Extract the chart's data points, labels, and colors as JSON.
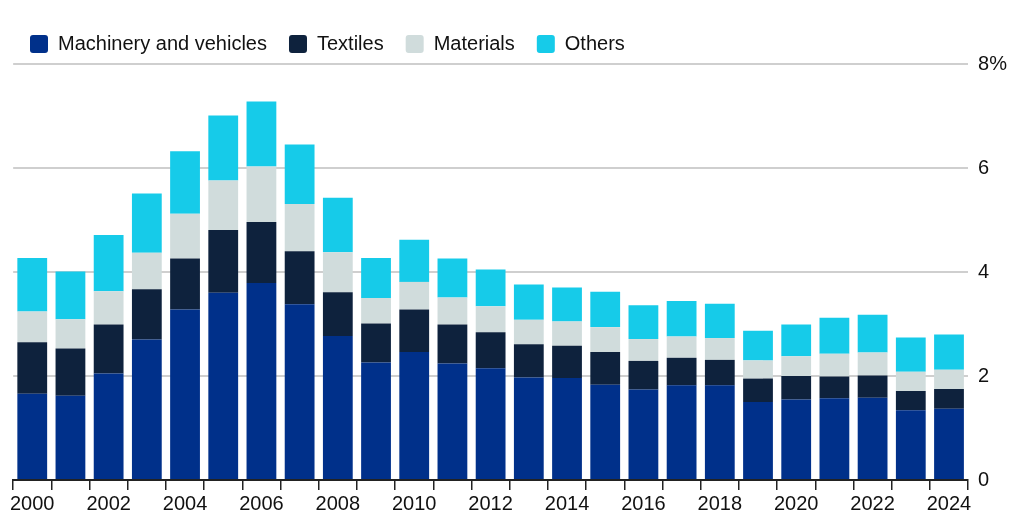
{
  "chart_data": {
    "type": "bar",
    "stacked": true,
    "categories": [
      "2000",
      null,
      "2002",
      null,
      "2004",
      null,
      "2006",
      null,
      "2008",
      null,
      "2010",
      null,
      "2012",
      null,
      "2014",
      null,
      "2016",
      null,
      "2018",
      null,
      "2020",
      null,
      "2022",
      null,
      "2024"
    ],
    "series": [
      {
        "name": "Machinery and vehicles",
        "color": "#00308a",
        "values": [
          1.66,
          1.62,
          2.05,
          2.7,
          3.28,
          3.6,
          3.79,
          3.38,
          2.77,
          2.26,
          2.46,
          2.24,
          2.15,
          1.97,
          1.96,
          1.83,
          1.74,
          1.82,
          1.82,
          1.5,
          1.55,
          1.57,
          1.58,
          1.34,
          1.37
        ]
      },
      {
        "name": "Textiles",
        "color": "#0e223d",
        "values": [
          0.99,
          0.91,
          0.94,
          0.97,
          0.98,
          1.21,
          1.17,
          1.02,
          0.84,
          0.75,
          0.82,
          0.75,
          0.69,
          0.64,
          0.62,
          0.63,
          0.55,
          0.53,
          0.49,
          0.45,
          0.45,
          0.42,
          0.43,
          0.37,
          0.38
        ]
      },
      {
        "name": "Materials",
        "color": "#d0dcdc",
        "values": [
          0.59,
          0.56,
          0.64,
          0.7,
          0.86,
          0.95,
          1.07,
          0.91,
          0.77,
          0.49,
          0.53,
          0.52,
          0.5,
          0.47,
          0.47,
          0.48,
          0.42,
          0.41,
          0.42,
          0.35,
          0.38,
          0.44,
          0.44,
          0.37,
          0.37
        ]
      },
      {
        "name": "Others",
        "color": "#16cbe9",
        "values": [
          1.03,
          0.92,
          1.08,
          1.14,
          1.2,
          1.25,
          1.25,
          1.14,
          1.05,
          0.77,
          0.81,
          0.75,
          0.71,
          0.68,
          0.65,
          0.68,
          0.65,
          0.68,
          0.66,
          0.57,
          0.61,
          0.69,
          0.73,
          0.66,
          0.68
        ]
      }
    ],
    "ylim": [
      0,
      8
    ],
    "yticks": [
      0,
      2,
      4,
      6,
      {
        "value": 8,
        "label": "8%"
      }
    ],
    "grid": "y",
    "legend": "top left"
  }
}
